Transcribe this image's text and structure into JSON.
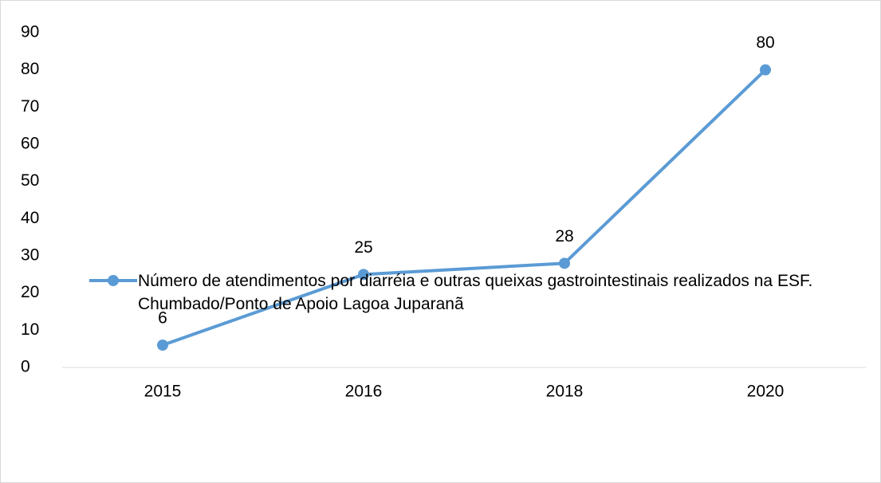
{
  "chart_data": {
    "type": "line",
    "categories": [
      "2015",
      "2016",
      "2018",
      "2020"
    ],
    "series": [
      {
        "name": "Número de atendimentos por diarréia e outras queixas gastrointestinais realizados na ESF. Chumbado/Ponto de Apoio Lagoa Juparanã",
        "color": "#5b9bd5",
        "values": [
          6,
          25,
          28,
          80
        ]
      }
    ],
    "ylim": [
      0,
      90
    ],
    "yticks": [
      0,
      10,
      20,
      30,
      40,
      50,
      60,
      70,
      80,
      90
    ],
    "data_labels": true,
    "legend": "bottom"
  }
}
